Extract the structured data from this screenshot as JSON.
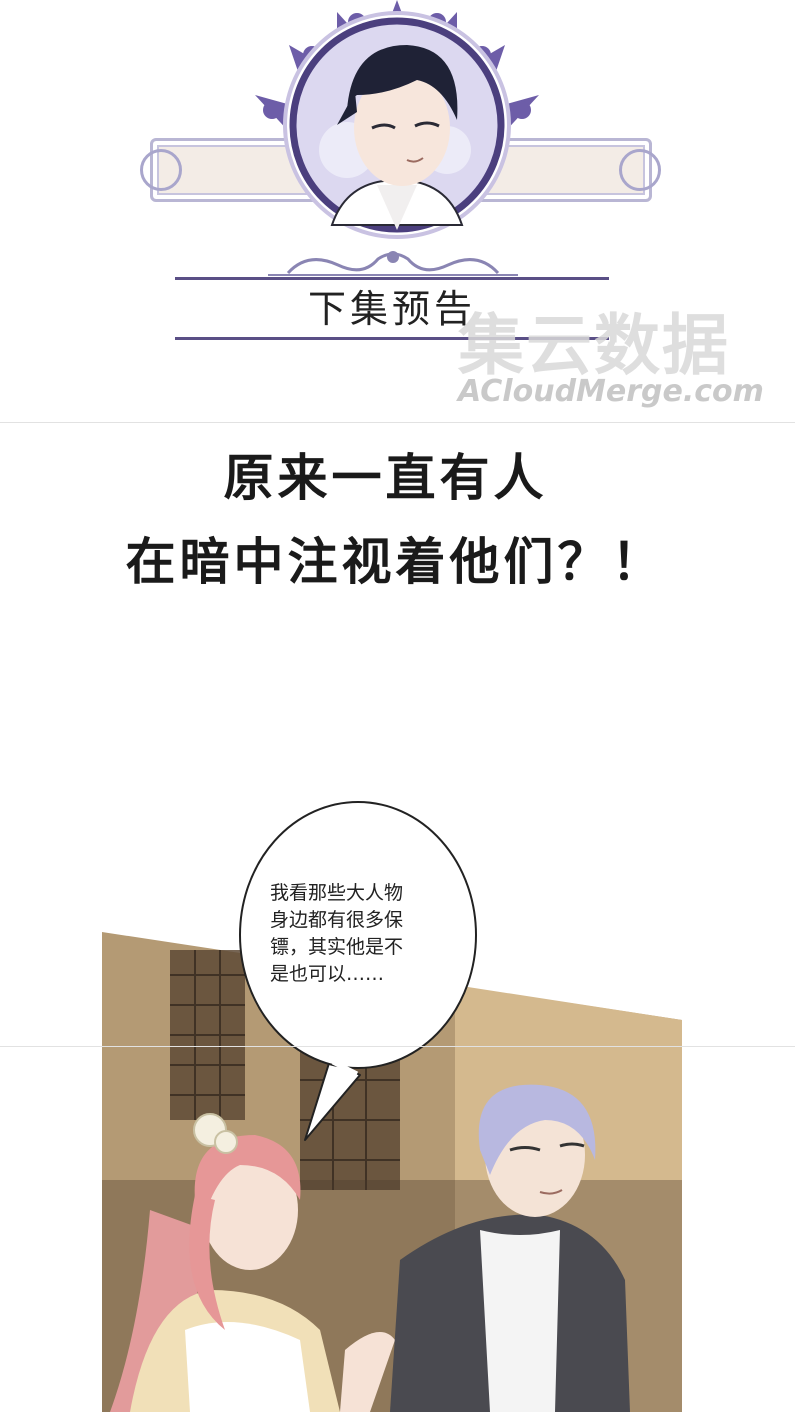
{
  "header": {
    "title": "下集预告",
    "watermark_cn": "集云数据",
    "watermark_en": "ACloudMerge.com"
  },
  "teaser": {
    "line1": "原来一直有人",
    "line2": "在暗中注视着他们？！"
  },
  "scene": {
    "speech_bubble": {
      "lines": [
        "我看那些大人物",
        "身边都有很多保",
        "镖，其实他是不",
        "是也可以……"
      ]
    }
  },
  "colors": {
    "frame_purple": "#5a4f86",
    "ornament_purple": "#6d5da8",
    "frame_beige": "#f3ece6"
  }
}
